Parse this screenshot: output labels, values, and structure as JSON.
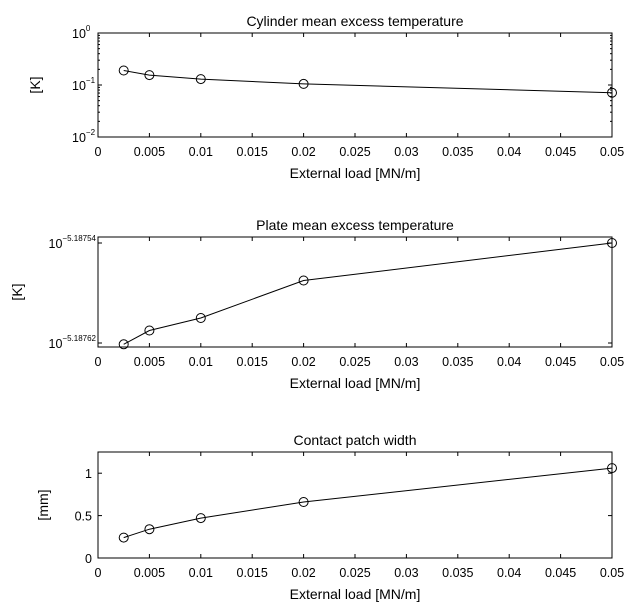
{
  "chart_data": [
    {
      "type": "line",
      "title": "Cylinder mean excess temperature",
      "xlabel": "External load [MN/m]",
      "ylabel": "[K]",
      "yscale": "log",
      "xlim": [
        0,
        0.05
      ],
      "ylim": [
        0.01,
        1
      ],
      "xticks": [
        "0",
        "0.005",
        "0.01",
        "0.015",
        "0.02",
        "0.025",
        "0.03",
        "0.035",
        "0.04",
        "0.045",
        "0.05"
      ],
      "yticks": [
        {
          "base": "10",
          "exp": "0"
        },
        {
          "base": "10",
          "exp": "−1"
        },
        {
          "base": "10",
          "exp": "−2"
        }
      ],
      "grid": false,
      "marker": "circle",
      "x": [
        0.0025,
        0.005,
        0.01,
        0.02,
        0.05
      ],
      "y": [
        0.19,
        0.155,
        0.13,
        0.105,
        0.071
      ]
    },
    {
      "type": "line",
      "title": "Plate mean excess temperature",
      "xlabel": "External load [MN/m]",
      "ylabel": "[K]",
      "yscale": "log",
      "xlim": [
        0,
        0.05
      ],
      "ylim": [
        -5.18762,
        -5.18754
      ],
      "xticks": [
        "0",
        "0.005",
        "0.01",
        "0.015",
        "0.02",
        "0.025",
        "0.03",
        "0.035",
        "0.04",
        "0.045",
        "0.05"
      ],
      "yticks": [
        {
          "base": "10",
          "exp": "−5.18754"
        },
        {
          "base": "10",
          "exp": "−5.18762"
        }
      ],
      "grid": false,
      "marker": "circle",
      "x": [
        0.0025,
        0.005,
        0.01,
        0.02,
        0.05
      ],
      "y": [
        -5.187621,
        -5.18761,
        -5.1876,
        -5.18757,
        -5.18754
      ]
    },
    {
      "type": "line",
      "title": "Contact patch width",
      "xlabel": "External load [MN/m]",
      "ylabel": "[mm]",
      "yscale": "linear",
      "xlim": [
        0,
        0.05
      ],
      "ylim": [
        0,
        1.25
      ],
      "xticks": [
        "0",
        "0.005",
        "0.01",
        "0.015",
        "0.02",
        "0.025",
        "0.03",
        "0.035",
        "0.04",
        "0.045",
        "0.05"
      ],
      "yticks": [
        {
          "value": 0,
          "label": "0"
        },
        {
          "value": 0.5,
          "label": "0.5"
        },
        {
          "value": 1,
          "label": "1"
        }
      ],
      "grid": false,
      "marker": "circle",
      "x": [
        0.0025,
        0.005,
        0.01,
        0.02,
        0.05
      ],
      "y": [
        0.24,
        0.34,
        0.47,
        0.66,
        1.06
      ]
    }
  ]
}
